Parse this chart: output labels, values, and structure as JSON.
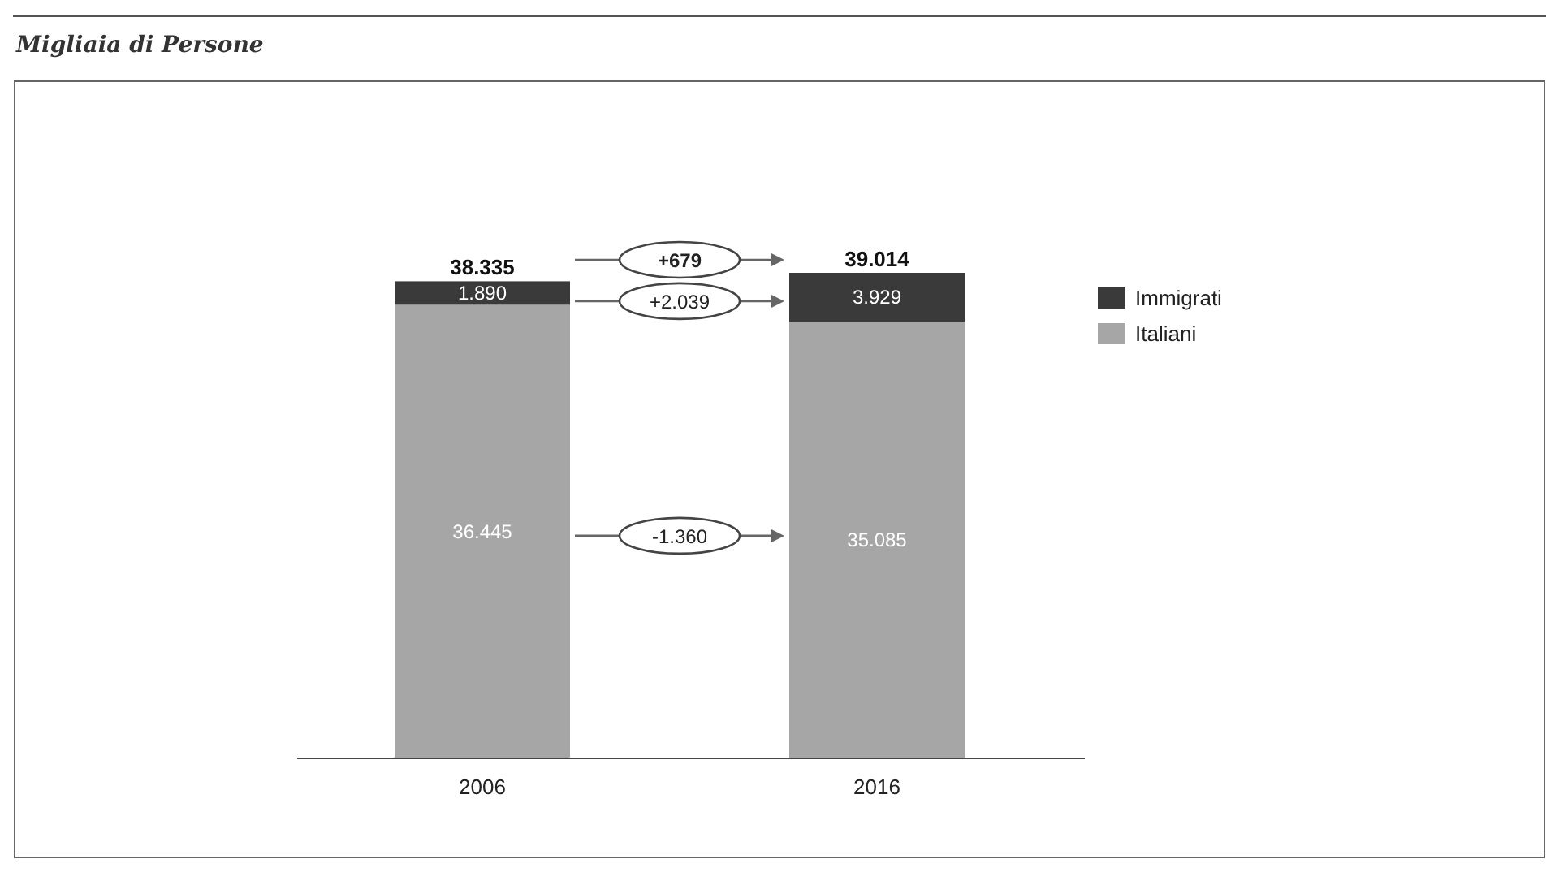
{
  "chart_data": {
    "type": "bar",
    "title": "Migliaia di Persone",
    "stacked": true,
    "categories": [
      "2006",
      "2016"
    ],
    "series": [
      {
        "name": "Italiani",
        "color": "#a6a6a6",
        "values": [
          36445,
          35085
        ],
        "value_labels": [
          "36.445",
          "35.085"
        ]
      },
      {
        "name": "Immigrati",
        "color": "#3a3a3a",
        "values": [
          1890,
          3929
        ],
        "value_labels": [
          "1.890",
          "3.929"
        ]
      }
    ],
    "totals": [
      "38.335",
      "39.014"
    ],
    "annotations": [
      "+679",
      "+2.039",
      "-1.360"
    ],
    "legend": "right"
  }
}
